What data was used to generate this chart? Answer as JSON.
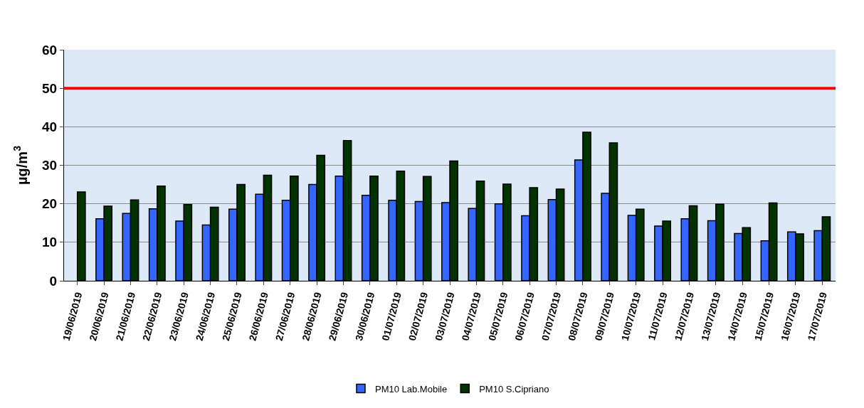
{
  "chart_data": {
    "type": "bar",
    "ylabel": "µg/m$^{3}$",
    "categories": [
      "19/06/2019",
      "20/06/2019",
      "21/06/2019",
      "22/06/2019",
      "23/06/2019",
      "24/06/2019",
      "25/06/2019",
      "26/06/2019",
      "27/06/2019",
      "28/06/2019",
      "29/06/2019",
      "30/06/2019",
      "01/07/2019",
      "02/07/2019",
      "03/07/2019",
      "04/07/2019",
      "05/07/2019",
      "06/07/2019",
      "07/07/2019",
      "08/07/2019",
      "09/07/2019",
      "10/07/2019",
      "11/07/2019",
      "12/07/2019",
      "13/07/2019",
      "14/07/2019",
      "15/07/2019",
      "16/07/2019",
      "17/07/2019"
    ],
    "series": [
      {
        "name": "PM10 Lab.Mobile",
        "color": "#3366ff",
        "values": [
          null,
          16.1,
          17.5,
          18.7,
          15.5,
          14.5,
          18.6,
          22.5,
          20.9,
          25,
          27.2,
          22.2,
          20.9,
          20.6,
          20.3,
          18.8,
          20,
          16.9,
          21.1,
          31.4,
          22.7,
          17,
          14.2,
          16.1,
          15.6,
          12.3,
          10.4,
          12.7,
          13
        ]
      },
      {
        "name": "PM10 S.Cipriano",
        "color": "#003300",
        "values": [
          23.1,
          19.4,
          21,
          24.6,
          19.8,
          19.1,
          25,
          27.4,
          27.2,
          32.6,
          36.4,
          27.2,
          28.5,
          27.1,
          31.1,
          25.9,
          25.1,
          24.2,
          23.8,
          38.6,
          35.8,
          18.6,
          15.5,
          19.5,
          19.9,
          13.8,
          20.2,
          12.2,
          16.6
        ]
      }
    ],
    "ylim": [
      0,
      60
    ],
    "yticks": [
      0,
      10,
      20,
      30,
      40,
      50,
      60
    ],
    "grid": "y",
    "legend": "bottom",
    "ref_lines": [
      {
        "axis": "y",
        "value": 50,
        "color": "#ff0000",
        "line_style": "solid"
      }
    ]
  }
}
